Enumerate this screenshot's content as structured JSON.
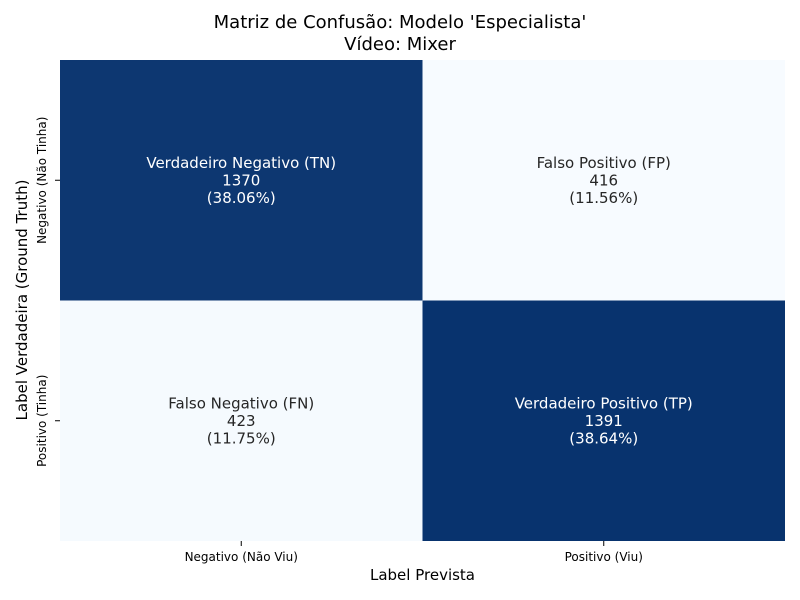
{
  "chart_data": {
    "type": "heatmap",
    "title": "Matriz de Confusão: Modelo 'Especialista'",
    "subtitle": "Vídeo: Mixer",
    "xlabel": "Label Prevista",
    "ylabel": "Label Verdadeira (Ground Truth)",
    "x_categories": [
      "Negativo (Não Viu)",
      "Positivo (Viu)"
    ],
    "y_categories": [
      "Negativo (Não Tinha)",
      "Positivo (Tinha)"
    ],
    "cells": [
      [
        {
          "label": "Verdadeiro Negativo (TN)",
          "value": 1370,
          "percent": "(38.06%)"
        },
        {
          "label": "Falso Positivo (FP)",
          "value": 416,
          "percent": "(11.56%)"
        }
      ],
      [
        {
          "label": "Falso Negativo (FN)",
          "value": 423,
          "percent": "(11.75%)"
        },
        {
          "label": "Verdadeiro Positivo (TP)",
          "value": 1391,
          "percent": "(38.64%)"
        }
      ]
    ],
    "colormap": "Blues",
    "color_low": "#f7fbff",
    "color_high": "#08336e",
    "text_dark": "#262626",
    "text_light": "#ffffff",
    "colorbar": false
  }
}
